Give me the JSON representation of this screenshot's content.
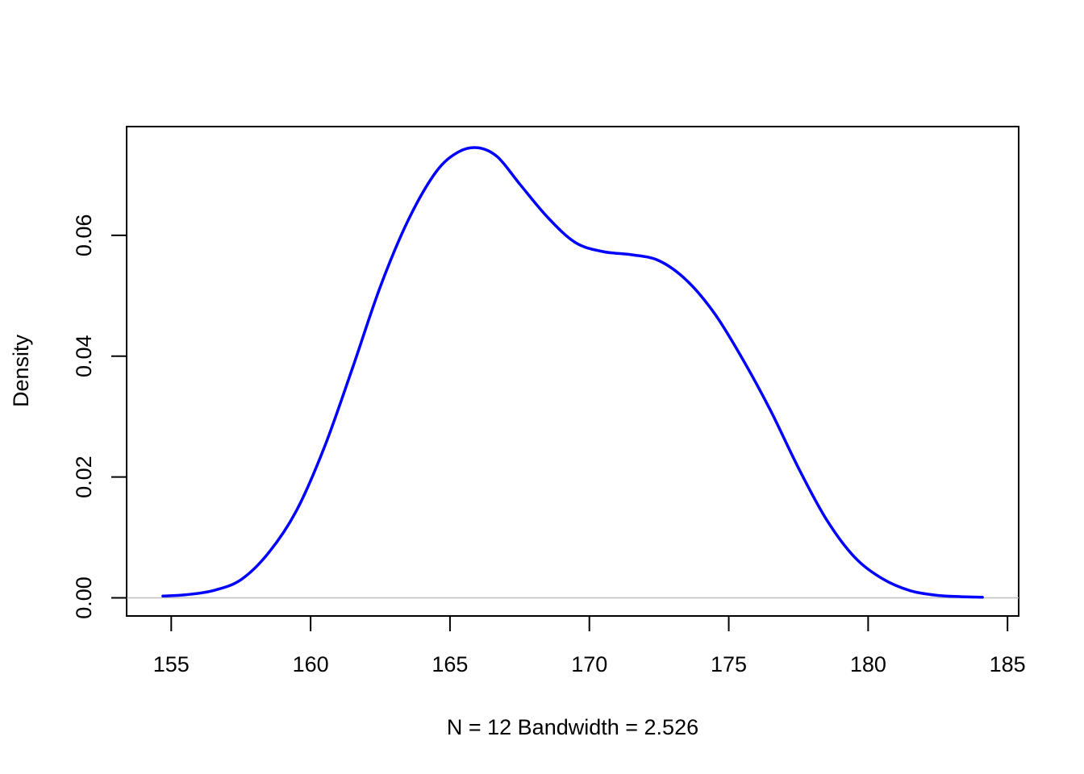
{
  "chart_data": {
    "type": "line",
    "title": "",
    "xlabel": "N = 12   Bandwidth = 2.526",
    "ylabel": "Density",
    "xlim": [
      153.4,
      185.4
    ],
    "ylim": [
      -0.003,
      0.078
    ],
    "x_ticks": [
      155,
      160,
      165,
      170,
      175,
      180,
      185
    ],
    "x_tick_labels": [
      "155",
      "160",
      "165",
      "170",
      "175",
      "180",
      "185"
    ],
    "y_ticks": [
      0.0,
      0.02,
      0.04,
      0.06
    ],
    "y_tick_labels": [
      "0.00",
      "0.02",
      "0.04",
      "0.06"
    ],
    "grid": false,
    "baseline": 0,
    "line_color": "#0000ff",
    "baseline_color": "#bebebe",
    "series": [
      {
        "x": [
          154.7,
          155.5,
          156.5,
          157.5,
          158.5,
          159.5,
          160.5,
          161.5,
          162.5,
          163.5,
          164.5,
          165.3,
          166.0,
          166.7,
          167.5,
          168.5,
          169.5,
          170.5,
          171.5,
          172.5,
          173.5,
          174.5,
          175.5,
          176.5,
          177.5,
          178.5,
          179.5,
          180.5,
          181.5,
          182.5,
          183.3,
          184.1
        ],
        "y": [
          0.0003,
          0.0005,
          0.0012,
          0.003,
          0.0075,
          0.0145,
          0.025,
          0.038,
          0.0515,
          0.0625,
          0.0705,
          0.0738,
          0.0745,
          0.073,
          0.0685,
          0.063,
          0.0588,
          0.0573,
          0.0568,
          0.0558,
          0.0525,
          0.047,
          0.0395,
          0.031,
          0.0215,
          0.013,
          0.0068,
          0.0032,
          0.0012,
          0.0004,
          0.0002,
          0.0001
        ]
      }
    ]
  }
}
